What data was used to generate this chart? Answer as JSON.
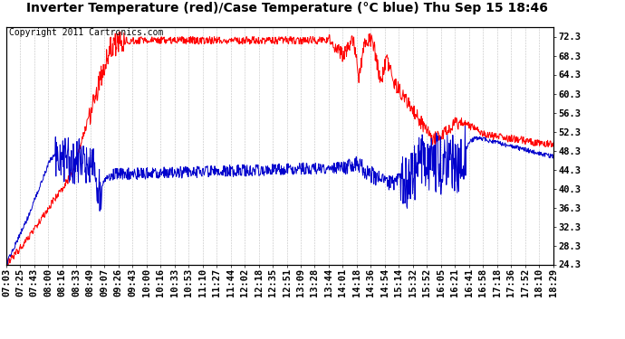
{
  "title": "Inverter Temperature (red)/Case Temperature (°C blue) Thu Sep 15 18:46",
  "copyright": "Copyright 2011 Cartronics.com",
  "ylabel_right_ticks": [
    24.3,
    28.3,
    32.3,
    36.3,
    40.3,
    44.3,
    48.3,
    52.3,
    56.3,
    60.3,
    64.3,
    68.3,
    72.3
  ],
  "ymin": 24.3,
  "ymax": 74.3,
  "background_color": "#ffffff",
  "plot_bg_color": "#ffffff",
  "grid_color": "#bbbbbb",
  "red_color": "#ff0000",
  "blue_color": "#0000cc",
  "title_fontsize": 10,
  "copyright_fontsize": 7,
  "tick_fontsize": 7.5,
  "x_tick_labels": [
    "07:03",
    "07:25",
    "07:43",
    "08:00",
    "08:16",
    "08:33",
    "08:49",
    "09:07",
    "09:26",
    "09:43",
    "10:00",
    "10:16",
    "10:33",
    "10:53",
    "11:10",
    "11:27",
    "11:44",
    "12:02",
    "12:18",
    "12:35",
    "12:51",
    "13:09",
    "13:28",
    "13:44",
    "14:01",
    "14:18",
    "14:36",
    "14:54",
    "15:14",
    "15:32",
    "15:52",
    "16:05",
    "16:21",
    "16:41",
    "16:58",
    "17:18",
    "17:36",
    "17:52",
    "18:10",
    "18:29"
  ]
}
